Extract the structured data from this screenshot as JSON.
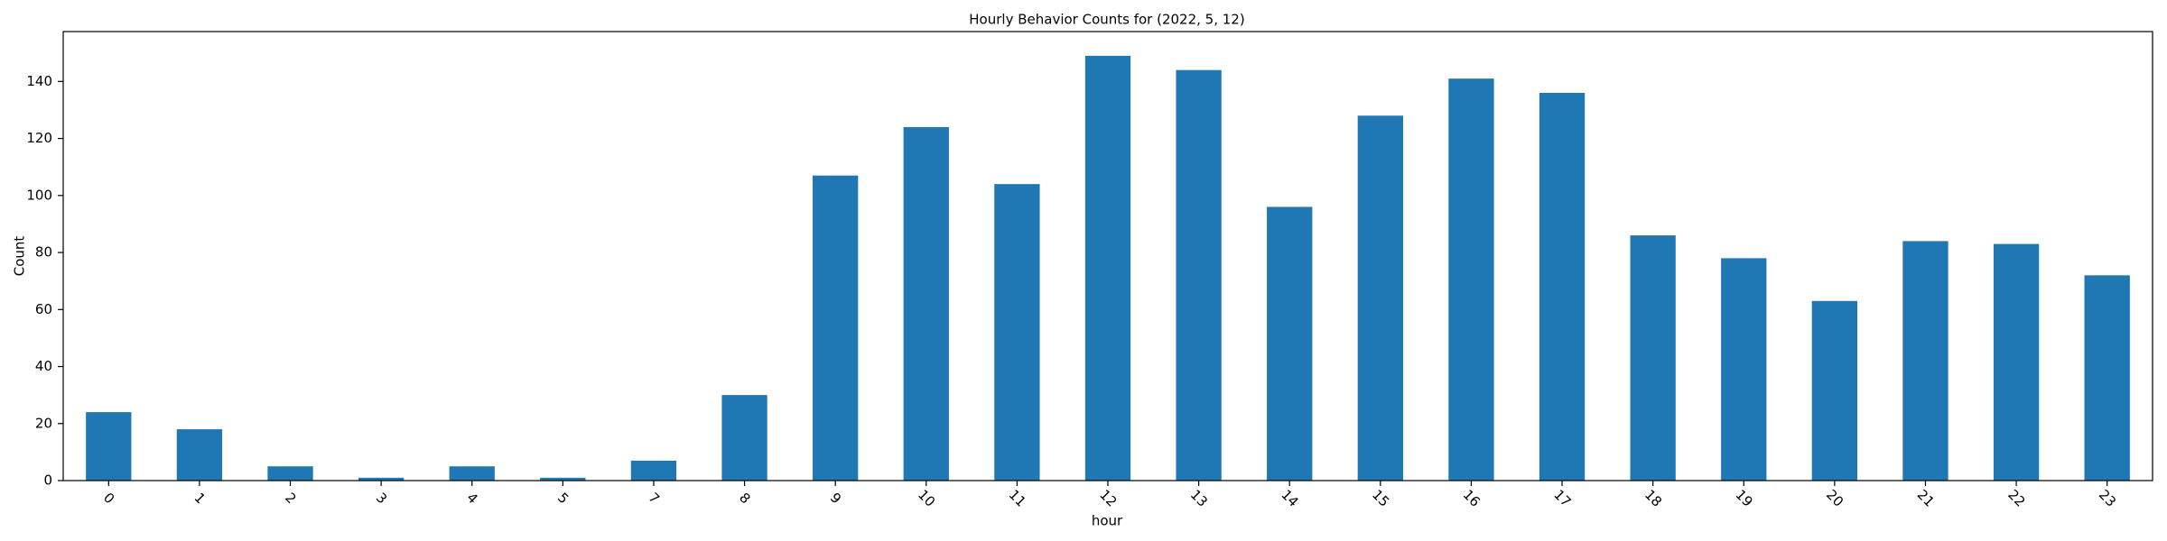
{
  "chart_data": {
    "type": "bar",
    "title": "Hourly Behavior Counts for (2022, 5, 12)",
    "x_label": "hour",
    "y_label": "Count",
    "categories": [
      "0",
      "1",
      "2",
      "3",
      "4",
      "5",
      "7",
      "8",
      "9",
      "10",
      "11",
      "12",
      "13",
      "14",
      "15",
      "16",
      "17",
      "18",
      "19",
      "20",
      "21",
      "22",
      "23"
    ],
    "values": [
      24,
      18,
      5,
      1,
      5,
      1,
      7,
      30,
      107,
      124,
      104,
      149,
      144,
      96,
      128,
      141,
      136,
      86,
      78,
      63,
      84,
      83,
      72
    ],
    "color": "#1f77b4",
    "ylim": [
      0,
      157.5
    ],
    "yticks": [
      0,
      20,
      40,
      60,
      80,
      100,
      120,
      140
    ],
    "grid": false
  }
}
